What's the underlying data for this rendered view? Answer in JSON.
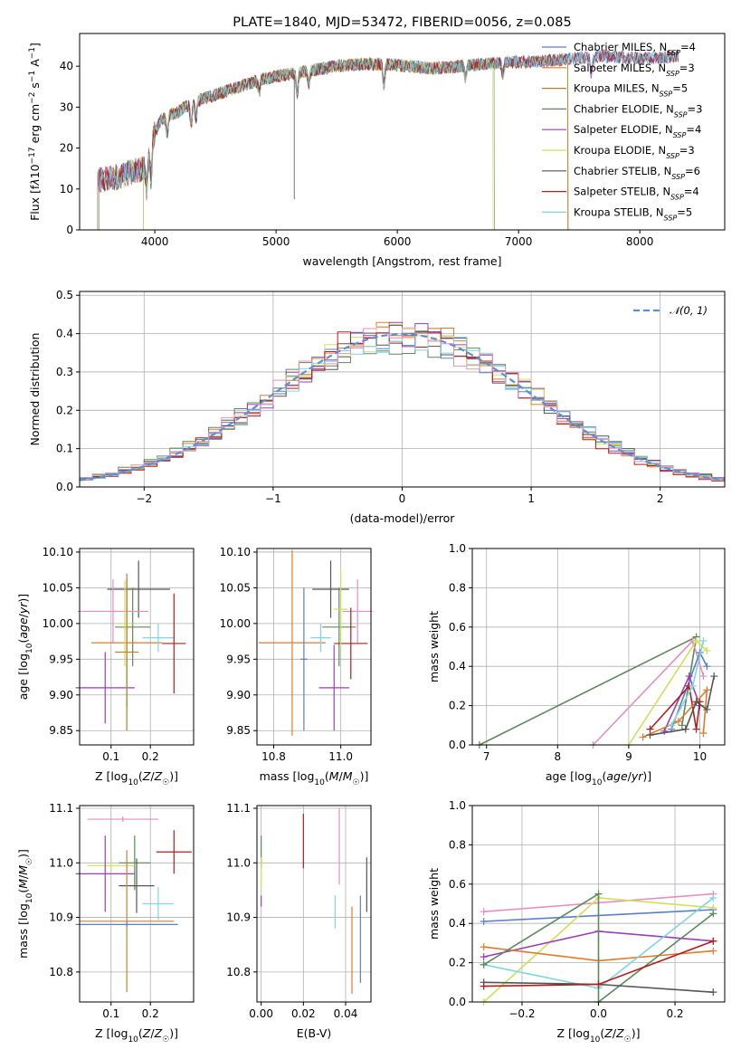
{
  "colors": {
    "Chabrier MILES": "#5b7ec9",
    "Salpeter MILES": "#e07b2a",
    "Kroupa MILES": "#b5822b",
    "Chabrier ELODIE": "#5b8a5b",
    "Salpeter ELODIE": "#9b3fb5",
    "Kroupa ELODIE": "#cfe05a",
    "Chabrier STELIB": "#555555",
    "Salpeter STELIB": "#b51c1c",
    "Kroupa STELIB": "#7fd6e0",
    "pink": "#e58fbf",
    "grid": "#b0b0b0"
  },
  "chart_data": [
    {
      "id": "spectrum",
      "type": "line",
      "title": "PLATE=1840, MJD=53472, FIBERID=0056, z=0.085",
      "xlabel": "wavelength [Angstrom, rest frame]",
      "ylabel": "Flux [f_λ 10⁻¹⁷ erg cm⁻² s⁻¹ A⁻¹]",
      "xlim": [
        3380,
        8700
      ],
      "ylim": [
        0,
        48
      ],
      "xticks": [
        4000,
        5000,
        6000,
        7000,
        8000
      ],
      "yticks": [
        0,
        10,
        20,
        30,
        40
      ],
      "grid": false,
      "legend_position": "top-right",
      "legend": [
        {
          "base": "Chabrier MILES",
          "n": "4"
        },
        {
          "base": "Salpeter MILES",
          "n": "3"
        },
        {
          "base": "Kroupa MILES",
          "n": "5"
        },
        {
          "base": "Chabrier ELODIE",
          "n": "3"
        },
        {
          "base": "Salpeter ELODIE",
          "n": "4"
        },
        {
          "base": "Kroupa ELODIE",
          "n": "3"
        },
        {
          "base": "Chabrier STELIB",
          "n": "6"
        },
        {
          "base": "Salpeter STELIB",
          "n": "4"
        },
        {
          "base": "Kroupa STELIB",
          "n": "5"
        }
      ],
      "legend_subscript": "SSP",
      "continuum": {
        "x": [
          3530,
          3600,
          3700,
          3800,
          3900,
          3980,
          4050,
          4200,
          4300,
          4500,
          4700,
          4900,
          5100,
          5300,
          5500,
          5700,
          5900,
          6100,
          6300,
          6500,
          6700,
          6900,
          7100,
          7300,
          7500,
          7700,
          7900,
          8100,
          8300
        ],
        "y": [
          12,
          12.5,
          13,
          14,
          15,
          22,
          27,
          29,
          31,
          33,
          35,
          37,
          38,
          39,
          40,
          40.5,
          40.5,
          40,
          39.5,
          40,
          40.5,
          41,
          41,
          41.5,
          42,
          42.5,
          42,
          42,
          42.5
        ]
      },
      "absorption_features": [
        {
          "x": 3933,
          "depth": 8
        },
        {
          "x": 3968,
          "depth": 8
        },
        {
          "x": 4102,
          "depth": 4
        },
        {
          "x": 4300,
          "depth": 5
        },
        {
          "x": 4340,
          "depth": 4
        },
        {
          "x": 4861,
          "depth": 3
        },
        {
          "x": 5175,
          "depth": 5
        },
        {
          "x": 5270,
          "depth": 3
        },
        {
          "x": 5890,
          "depth": 5
        },
        {
          "x": 6563,
          "depth": 3
        },
        {
          "x": 6870,
          "depth": 3
        },
        {
          "x": 7600,
          "depth": 4
        }
      ],
      "cutoffs": [
        {
          "series": "Kroupa MILES",
          "xmin": 3540,
          "xmax": 7405
        },
        {
          "series": "Salpeter MILES",
          "xmin": 3530,
          "xmax": 7410
        },
        {
          "series": "Kroupa ELODIE",
          "xmin": 3905,
          "xmax": 6790
        },
        {
          "series": "Chabrier ELODIE",
          "xmin": 3905,
          "xmax": 6800
        }
      ],
      "spikes": [
        {
          "x": 5150,
          "ylow": 7.5,
          "yhigh": 38
        }
      ]
    },
    {
      "id": "residuals",
      "type": "histogram",
      "xlabel": "(data-model)/error",
      "ylabel": "Normed distribution",
      "xlim": [
        -2.5,
        2.5
      ],
      "ylim": [
        0,
        0.51
      ],
      "xticks": [
        -2,
        -1,
        0,
        1,
        2
      ],
      "yticks": [
        0.0,
        0.1,
        0.2,
        0.3,
        0.4,
        0.5
      ],
      "grid": true,
      "legend_position": "top-right",
      "gauss_label": "𝒩(0, 1)",
      "gauss_color": "#5b8fd6",
      "bin_width": 0.1,
      "series": [
        {
          "name": "Chabrier MILES",
          "offset": 0.02,
          "scale": 1.02
        },
        {
          "name": "Salpeter MILES",
          "offset": -0.01,
          "scale": 1.0
        },
        {
          "name": "Chabrier ELODIE",
          "offset": -0.02,
          "scale": 1.04
        },
        {
          "name": "Salpeter ELODIE",
          "offset": 0.01,
          "scale": 0.99
        },
        {
          "name": "Kroupa ELODIE",
          "offset": 0.0,
          "scale": 1.01
        },
        {
          "name": "Chabrier STELIB",
          "offset": 0.03,
          "scale": 1.03
        },
        {
          "name": "Salpeter STELIB",
          "offset": -0.03,
          "scale": 0.98
        },
        {
          "name": "Kroupa STELIB",
          "offset": 0.015,
          "scale": 1.0
        },
        {
          "name": "pink",
          "offset": -0.015,
          "scale": 1.02
        }
      ]
    },
    {
      "id": "age_vs_z",
      "type": "errorbar",
      "xlabel": "Z [log₁₀(Z/Z☉)]",
      "ylabel": "age  [log₁₀(age/yr)]",
      "xlim": [
        0.02,
        0.31
      ],
      "ylim": [
        9.83,
        10.105
      ],
      "xticks": [
        0.1,
        0.2
      ],
      "yticks": [
        9.85,
        9.9,
        9.95,
        10.0,
        10.05,
        10.1
      ],
      "grid": true,
      "points": [
        {
          "c": "Chabrier STELIB",
          "x": 0.17,
          "xerr": 0.08,
          "y": 10.048,
          "yerr": 0.04
        },
        {
          "c": "Chabrier ELODIE",
          "x": 0.155,
          "xerr": 0.045,
          "y": 9.995,
          "yerr": 0.055
        },
        {
          "c": "pink",
          "x": 0.105,
          "xerr": 0.09,
          "y": 10.017,
          "yerr": 0.045
        },
        {
          "c": "Salpeter MILES",
          "x": 0.14,
          "xerr": 0.09,
          "y": 9.973,
          "yerr": 0.09
        },
        {
          "c": "Kroupa STELIB",
          "x": 0.22,
          "xerr": 0.04,
          "y": 9.98,
          "yerr": 0.02
        },
        {
          "c": "Salpeter STELIB",
          "x": 0.26,
          "xerr": 0.03,
          "y": 9.972,
          "yerr": 0.07
        },
        {
          "c": "Salpeter ELODIE",
          "x": 0.085,
          "xerr": 0.075,
          "y": 9.91,
          "yerr": 0.05
        },
        {
          "c": "Kroupa ELODIE",
          "x": 0.135,
          "xerr": 0.02,
          "y": 10.0,
          "yerr": 0.06
        },
        {
          "c": "Kroupa MILES",
          "x": 0.14,
          "xerr": 0.03,
          "y": 9.96,
          "yerr": 0.11
        }
      ]
    },
    {
      "id": "age_vs_mass",
      "type": "errorbar",
      "xlabel": "mass [log₁₀(M/M☉)]",
      "ylabel": "",
      "xlim": [
        10.75,
        11.09
      ],
      "ylim": [
        9.83,
        10.105
      ],
      "xticks": [
        10.8,
        11.0
      ],
      "yticks": [
        9.85,
        9.9,
        9.95,
        10.0,
        10.05,
        10.1
      ],
      "grid": true,
      "points": [
        {
          "c": "Chabrier STELIB",
          "x": 10.97,
          "xerr": 0.055,
          "y": 10.048,
          "yerr": 0.04
        },
        {
          "c": "Chabrier ELODIE",
          "x": 10.995,
          "xerr": 0.05,
          "y": 9.995,
          "yerr": 0.055
        },
        {
          "c": "pink",
          "x": 11.05,
          "xerr": 0.045,
          "y": 10.017,
          "yerr": 0.045
        },
        {
          "c": "Salpeter MILES",
          "x": 10.855,
          "xerr": 0.1,
          "y": 9.973,
          "yerr": 0.13
        },
        {
          "c": "Kroupa STELIB",
          "x": 10.94,
          "xerr": 0.03,
          "y": 9.98,
          "yerr": 0.02
        },
        {
          "c": "Salpeter STELIB",
          "x": 11.03,
          "xerr": 0.05,
          "y": 9.972,
          "yerr": 0.05
        },
        {
          "c": "Salpeter ELODIE",
          "x": 10.98,
          "xerr": 0.045,
          "y": 9.91,
          "yerr": 0.06
        },
        {
          "c": "Kroupa ELODIE",
          "x": 11.0,
          "xerr": 0.02,
          "y": 10.02,
          "yerr": 0.055
        },
        {
          "c": "Chabrier MILES",
          "x": 10.89,
          "xerr": 0.01,
          "y": 9.95,
          "yerr": 0.1
        }
      ]
    },
    {
      "id": "mass_weight_vs_age",
      "type": "line",
      "xlabel": "age  [log₁₀(age/yr)]",
      "ylabel": "mass weight",
      "xlim": [
        6.8,
        10.35
      ],
      "ylim": [
        0,
        1
      ],
      "xticks": [
        7,
        8,
        9,
        10
      ],
      "yticks": [
        0.0,
        0.2,
        0.4,
        0.6,
        0.8,
        1.0
      ],
      "grid": true,
      "series": [
        {
          "c": "Chabrier ELODIE",
          "x": [
            6.9,
            9.95,
            9.75
          ],
          "y": [
            0.0,
            0.55,
            0.1
          ]
        },
        {
          "c": "pink",
          "x": [
            8.5,
            9.9,
            10.05
          ],
          "y": [
            0.0,
            0.53,
            0.35
          ]
        },
        {
          "c": "Kroupa ELODIE",
          "x": [
            9.0,
            9.95,
            10.1
          ],
          "y": [
            0.0,
            0.53,
            0.48
          ]
        },
        {
          "c": "Chabrier MILES",
          "x": [
            9.6,
            10.0,
            10.1
          ],
          "y": [
            0.08,
            0.47,
            0.4
          ]
        },
        {
          "c": "Salpeter ELODIE",
          "x": [
            9.5,
            9.85,
            10.0
          ],
          "y": [
            0.07,
            0.35,
            0.2
          ]
        },
        {
          "c": "Salpeter STELIB",
          "x": [
            9.3,
            9.85,
            9.95,
            10.0
          ],
          "y": [
            0.08,
            0.3,
            0.08,
            0.22
          ]
        },
        {
          "c": "Salpeter MILES",
          "x": [
            9.2,
            9.7,
            10.1,
            10.05
          ],
          "y": [
            0.04,
            0.12,
            0.28,
            0.06
          ]
        },
        {
          "c": "Chabrier STELIB",
          "x": [
            9.3,
            9.8,
            9.95,
            10.1,
            10.2
          ],
          "y": [
            0.05,
            0.08,
            0.22,
            0.18,
            0.35
          ]
        },
        {
          "c": "Kroupa STELIB",
          "x": [
            9.6,
            9.9,
            10.05
          ],
          "y": [
            0.1,
            0.3,
            0.53
          ]
        }
      ]
    },
    {
      "id": "mass_vs_z",
      "type": "errorbar",
      "xlabel": "Z [log₁₀(Z/Z☉)]",
      "ylabel": "mass [log₁₀(M/M☉)]",
      "xlim": [
        0.02,
        0.31
      ],
      "ylim": [
        10.745,
        11.105
      ],
      "xticks": [
        0.1,
        0.2
      ],
      "yticks": [
        10.8,
        10.9,
        11.0,
        11.1
      ],
      "grid": true,
      "points": [
        {
          "c": "pink",
          "x": 0.13,
          "xerr": 0.09,
          "y": 11.08,
          "yerr": 0.005
        },
        {
          "c": "Salpeter STELIB",
          "x": 0.26,
          "xerr": 0.045,
          "y": 11.02,
          "yerr": 0.04
        },
        {
          "c": "Chabrier ELODIE",
          "x": 0.16,
          "xerr": 0.04,
          "y": 11.0,
          "yerr": 0.05
        },
        {
          "c": "Kroupa ELODIE",
          "x": 0.1,
          "xerr": 0.06,
          "y": 10.995,
          "yerr": 0.01
        },
        {
          "c": "Salpeter ELODIE",
          "x": 0.085,
          "xerr": 0.075,
          "y": 10.98,
          "yerr": 0.07
        },
        {
          "c": "Chabrier STELIB",
          "x": 0.165,
          "xerr": 0.045,
          "y": 10.958,
          "yerr": 0.05
        },
        {
          "c": "Kroupa STELIB",
          "x": 0.22,
          "xerr": 0.04,
          "y": 10.925,
          "yerr": 0.03
        },
        {
          "c": "Salpeter MILES",
          "x": 0.14,
          "xerr": 0.12,
          "y": 10.893,
          "yerr": 0.13
        },
        {
          "c": "Chabrier MILES",
          "x": 0.14,
          "xerr": 0.13,
          "y": 10.887,
          "yerr": 0.005
        }
      ]
    },
    {
      "id": "mass_vs_ebv",
      "type": "errorbar",
      "xlabel": "E(B-V)",
      "ylabel": "",
      "xlim": [
        -0.002,
        0.052
      ],
      "ylim": [
        10.745,
        11.105
      ],
      "xticks": [
        0.0,
        0.02,
        0.04
      ],
      "yticks": [
        10.8,
        10.9,
        11.0,
        11.1
      ],
      "grid": true,
      "points": [
        {
          "c": "Chabrier ELODIE",
          "x": 0.0,
          "xerr": 0,
          "y": 11.02,
          "yerr": 0.03
        },
        {
          "c": "Kroupa ELODIE",
          "x": 0.0,
          "xerr": 0,
          "y": 10.98,
          "yerr": 0.03
        },
        {
          "c": "Salpeter ELODIE",
          "x": 0.0,
          "xerr": 0,
          "y": 10.93,
          "yerr": 0.01
        },
        {
          "c": "Salpeter STELIB",
          "x": 0.02,
          "xerr": 0,
          "y": 11.04,
          "yerr": 0.05
        },
        {
          "c": "pink",
          "x": 0.037,
          "xerr": 0,
          "y": 11.03,
          "yerr": 0.07
        },
        {
          "c": "Kroupa STELIB",
          "x": 0.035,
          "xerr": 0,
          "y": 10.91,
          "yerr": 0.03
        },
        {
          "c": "Salpeter MILES",
          "x": 0.043,
          "xerr": 0,
          "y": 10.84,
          "yerr": 0.08
        },
        {
          "c": "Chabrier MILES",
          "x": 0.047,
          "xerr": 0,
          "y": 10.86,
          "yerr": 0.08
        },
        {
          "c": "Chabrier STELIB",
          "x": 0.05,
          "xerr": 0,
          "y": 10.96,
          "yerr": 0.05
        }
      ]
    },
    {
      "id": "mass_weight_vs_z",
      "type": "line",
      "xlabel": "Z [log₁₀(Z/Z☉)]",
      "ylabel": "mass weight",
      "xlim": [
        -0.33,
        0.33
      ],
      "ylim": [
        0,
        1
      ],
      "xticks": [
        -0.2,
        0.0,
        0.2
      ],
      "yticks": [
        0.0,
        0.2,
        0.4,
        0.6,
        0.8,
        1.0
      ],
      "grid": true,
      "series": [
        {
          "c": "pink",
          "x": [
            -0.3,
            0.3
          ],
          "y": [
            0.46,
            0.55
          ]
        },
        {
          "c": "Chabrier MILES",
          "x": [
            -0.3,
            0.3
          ],
          "y": [
            0.41,
            0.47
          ]
        },
        {
          "c": "Kroupa ELODIE",
          "x": [
            -0.3,
            0.0,
            0.3
          ],
          "y": [
            0.0,
            0.53,
            0.48
          ]
        },
        {
          "c": "Salpeter ELODIE",
          "x": [
            -0.3,
            0.0,
            0.3
          ],
          "y": [
            0.23,
            0.36,
            0.31
          ]
        },
        {
          "c": "Salpeter MILES",
          "x": [
            -0.3,
            0.0,
            0.3
          ],
          "y": [
            0.28,
            0.21,
            0.26
          ]
        },
        {
          "c": "Kroupa STELIB",
          "x": [
            -0.3,
            0.0,
            0.3
          ],
          "y": [
            0.19,
            0.07,
            0.53
          ]
        },
        {
          "c": "Chabrier ELODIE",
          "x": [
            -0.3,
            0.0,
            0.0,
            0.3
          ],
          "y": [
            0.19,
            0.55,
            0.0,
            0.45
          ]
        },
        {
          "c": "Chabrier STELIB",
          "x": [
            -0.3,
            0.0,
            0.3
          ],
          "y": [
            0.1,
            0.09,
            0.05
          ]
        },
        {
          "c": "Salpeter STELIB",
          "x": [
            -0.3,
            0.0,
            0.3
          ],
          "y": [
            0.08,
            0.09,
            0.31
          ]
        }
      ]
    }
  ]
}
